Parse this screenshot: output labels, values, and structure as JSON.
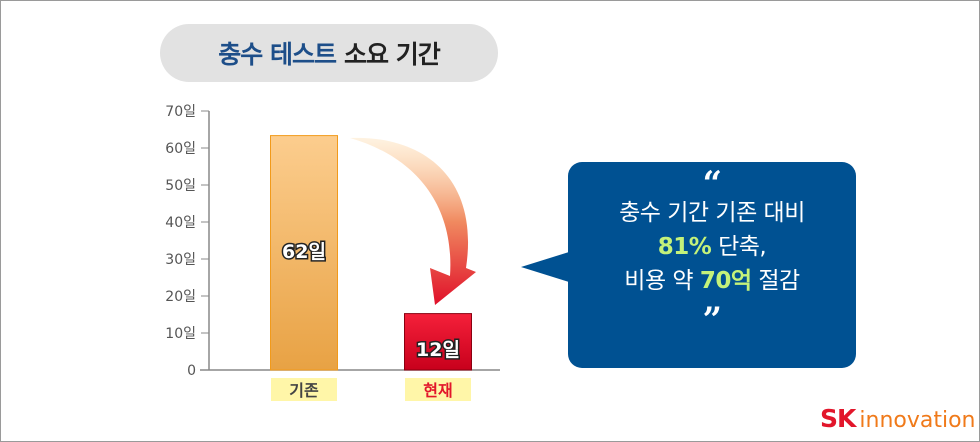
{
  "title": {
    "highlight": "충수 테스트",
    "rest": "소요 기간"
  },
  "chart_data": {
    "type": "bar",
    "title": "충수 테스트 소요 기간",
    "categories": [
      "기존",
      "현재"
    ],
    "values": [
      62,
      12
    ],
    "data_labels": [
      "62일",
      "12일"
    ],
    "yticks": [
      "0",
      "10일",
      "20일",
      "30일",
      "40일",
      "50일",
      "60일",
      "70일"
    ],
    "ylim": [
      0,
      70
    ],
    "grid": false,
    "colors": [
      "#f0b060",
      "#e0102a"
    ],
    "annotation": "arrow from 기존 to 현재"
  },
  "callout": {
    "open_quote": "“",
    "line1": "충수 기간 기존 대비",
    "line2_highlight": "81%",
    "line2_rest": " 단축,",
    "line3_pre": "비용 약 ",
    "line3_highlight": "70억",
    "line3_rest": " 절감",
    "close_quote": "”",
    "highlight_color": "#c4f27a",
    "bg_color": "#005192"
  },
  "logo": {
    "sk": "SK",
    "innovation": "innovation"
  }
}
